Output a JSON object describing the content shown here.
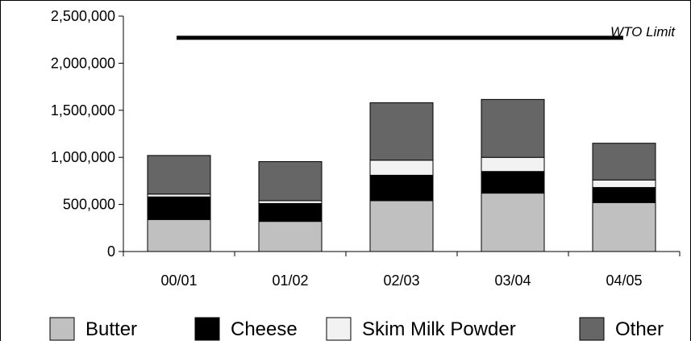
{
  "chart_data": {
    "type": "bar",
    "stacked": true,
    "categories": [
      "00/01",
      "01/02",
      "02/03",
      "03/04",
      "04/05"
    ],
    "series": [
      {
        "name": "Butter",
        "color": "#c0c0c0",
        "values": [
          340000,
          320000,
          540000,
          620000,
          520000
        ]
      },
      {
        "name": "Cheese",
        "color": "#000000",
        "values": [
          240000,
          190000,
          270000,
          230000,
          160000
        ]
      },
      {
        "name": "Skim Milk Powder",
        "color": "#f2f2f2",
        "values": [
          30000,
          30000,
          160000,
          150000,
          80000
        ]
      },
      {
        "name": "Other",
        "color": "#666666",
        "values": [
          410000,
          415000,
          610000,
          615000,
          390000
        ]
      }
    ],
    "y_ticks": [
      "0",
      "500,000",
      "1,000,000",
      "1,500,000",
      "2,000,000",
      "2,500,000"
    ],
    "ylim": [
      0,
      2500000
    ],
    "grid": false,
    "legend_position": "bottom",
    "reference_line": {
      "label": "WTO Limit",
      "value": 2270000,
      "color": "#000000"
    },
    "title": "",
    "xlabel": "",
    "ylabel": ""
  }
}
